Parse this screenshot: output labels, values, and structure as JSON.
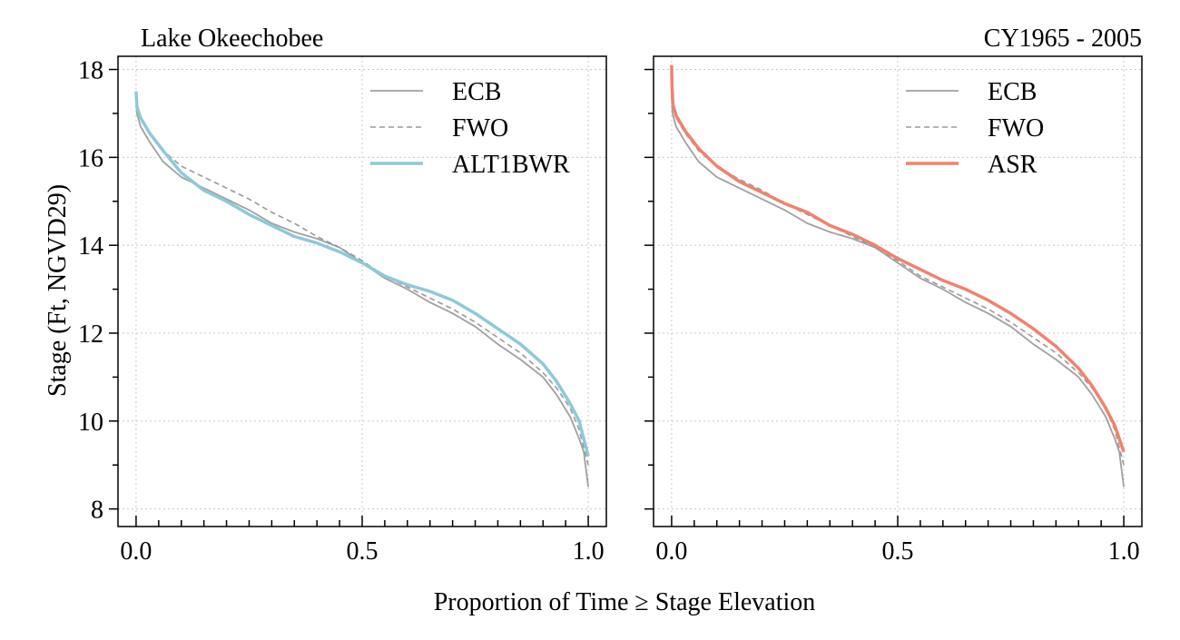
{
  "page_title_left": "Lake Okeechobee",
  "page_title_right": "CY1965 - 2005",
  "x_axis_label": "Proportion of Time ≥ Stage Elevation",
  "y_axis_label": "Stage (Ft, NGVD29)",
  "colors": {
    "ECB": "#a0a0a0",
    "FWO": "#9a9a9a",
    "ALT1BWR": "#8ec9d8",
    "ASR": "#f08270",
    "grid": "#c8c8c8"
  },
  "chart_data": [
    {
      "type": "line",
      "title": "Lake Okeechobee",
      "xlabel": "Proportion of Time ≥ Stage Elevation",
      "ylabel": "Stage (Ft, NGVD29)",
      "xlim": [
        -0.04,
        1.04
      ],
      "ylim": [
        7.6,
        18.3
      ],
      "xticks": [
        "0.0",
        "0.5",
        "1.0"
      ],
      "yticks": [
        "8",
        "10",
        "12",
        "14",
        "16",
        "18"
      ],
      "grid": true,
      "legend_position": "top-right",
      "series": [
        {
          "name": "ECB",
          "style": "solid",
          "x": [
            0.0,
            0.002,
            0.01,
            0.03,
            0.06,
            0.1,
            0.15,
            0.2,
            0.25,
            0.3,
            0.35,
            0.4,
            0.45,
            0.5,
            0.55,
            0.6,
            0.65,
            0.7,
            0.75,
            0.8,
            0.85,
            0.9,
            0.93,
            0.96,
            0.98,
            0.99,
            1.0
          ],
          "y": [
            17.4,
            17.0,
            16.7,
            16.35,
            15.9,
            15.55,
            15.3,
            15.05,
            14.8,
            14.5,
            14.3,
            14.15,
            13.95,
            13.6,
            13.25,
            13.0,
            12.7,
            12.45,
            12.15,
            11.75,
            11.4,
            11.0,
            10.6,
            10.1,
            9.6,
            9.3,
            8.5
          ]
        },
        {
          "name": "FWO",
          "style": "dashed",
          "x": [
            0.0,
            0.002,
            0.01,
            0.03,
            0.06,
            0.1,
            0.12,
            0.15,
            0.2,
            0.25,
            0.3,
            0.35,
            0.4,
            0.45,
            0.5,
            0.55,
            0.6,
            0.65,
            0.7,
            0.75,
            0.8,
            0.85,
            0.9,
            0.93,
            0.96,
            0.98,
            0.99,
            1.0
          ],
          "y": [
            17.5,
            17.2,
            16.9,
            16.55,
            16.15,
            15.8,
            15.7,
            15.55,
            15.3,
            15.05,
            14.75,
            14.5,
            14.2,
            13.95,
            13.65,
            13.3,
            13.05,
            12.8,
            12.55,
            12.25,
            11.9,
            11.55,
            11.1,
            10.75,
            10.3,
            9.8,
            9.4,
            9.0
          ]
        },
        {
          "name": "ALT1BWR",
          "style": "solid-thick",
          "x": [
            0.0,
            0.002,
            0.01,
            0.03,
            0.06,
            0.1,
            0.15,
            0.2,
            0.25,
            0.3,
            0.35,
            0.4,
            0.45,
            0.5,
            0.55,
            0.6,
            0.65,
            0.7,
            0.75,
            0.8,
            0.85,
            0.9,
            0.93,
            0.96,
            0.98,
            0.99,
            1.0
          ],
          "y": [
            17.5,
            17.15,
            16.9,
            16.55,
            16.15,
            15.65,
            15.25,
            15.0,
            14.7,
            14.45,
            14.2,
            14.05,
            13.85,
            13.6,
            13.3,
            13.1,
            12.95,
            12.75,
            12.45,
            12.1,
            11.75,
            11.3,
            10.9,
            10.4,
            10.0,
            9.6,
            9.2
          ]
        }
      ]
    },
    {
      "type": "line",
      "title": "CY1965 - 2005",
      "xlabel": "Proportion of Time ≥ Stage Elevation",
      "ylabel": "Stage (Ft, NGVD29)",
      "xlim": [
        -0.04,
        1.04
      ],
      "ylim": [
        7.6,
        18.3
      ],
      "xticks": [
        "0.0",
        "0.5",
        "1.0"
      ],
      "yticks": [
        "8",
        "10",
        "12",
        "14",
        "16",
        "18"
      ],
      "grid": true,
      "legend_position": "top-right",
      "series": [
        {
          "name": "ECB",
          "style": "solid",
          "x": [
            0.0,
            0.002,
            0.01,
            0.03,
            0.06,
            0.1,
            0.15,
            0.2,
            0.25,
            0.3,
            0.35,
            0.4,
            0.45,
            0.5,
            0.55,
            0.6,
            0.65,
            0.7,
            0.75,
            0.8,
            0.85,
            0.9,
            0.93,
            0.96,
            0.98,
            0.99,
            1.0
          ],
          "y": [
            17.4,
            17.0,
            16.7,
            16.35,
            15.9,
            15.55,
            15.3,
            15.05,
            14.8,
            14.5,
            14.3,
            14.15,
            13.95,
            13.6,
            13.25,
            13.0,
            12.7,
            12.45,
            12.15,
            11.75,
            11.4,
            11.0,
            10.6,
            10.1,
            9.6,
            9.3,
            8.5
          ]
        },
        {
          "name": "FWO",
          "style": "dashed",
          "x": [
            0.0,
            0.002,
            0.01,
            0.03,
            0.06,
            0.1,
            0.15,
            0.2,
            0.25,
            0.3,
            0.35,
            0.4,
            0.45,
            0.5,
            0.55,
            0.6,
            0.65,
            0.7,
            0.75,
            0.8,
            0.85,
            0.9,
            0.93,
            0.96,
            0.98,
            0.99,
            1.0
          ],
          "y": [
            17.5,
            17.2,
            16.9,
            16.55,
            16.15,
            15.8,
            15.5,
            15.25,
            14.95,
            14.7,
            14.45,
            14.2,
            13.95,
            13.65,
            13.3,
            13.05,
            12.8,
            12.55,
            12.25,
            11.9,
            11.55,
            11.1,
            10.75,
            10.3,
            9.8,
            9.4,
            9.0
          ]
        },
        {
          "name": "ASR",
          "style": "solid-thick",
          "x": [
            0.0,
            0.001,
            0.003,
            0.01,
            0.03,
            0.06,
            0.1,
            0.15,
            0.2,
            0.25,
            0.3,
            0.35,
            0.4,
            0.45,
            0.5,
            0.55,
            0.6,
            0.65,
            0.7,
            0.75,
            0.8,
            0.85,
            0.9,
            0.93,
            0.96,
            0.98,
            0.99,
            1.0
          ],
          "y": [
            18.1,
            17.6,
            17.2,
            16.95,
            16.6,
            16.2,
            15.8,
            15.45,
            15.2,
            14.95,
            14.75,
            14.45,
            14.25,
            14.0,
            13.7,
            13.45,
            13.2,
            13.0,
            12.75,
            12.45,
            12.1,
            11.7,
            11.2,
            10.8,
            10.3,
            9.9,
            9.6,
            9.3
          ]
        }
      ]
    }
  ]
}
